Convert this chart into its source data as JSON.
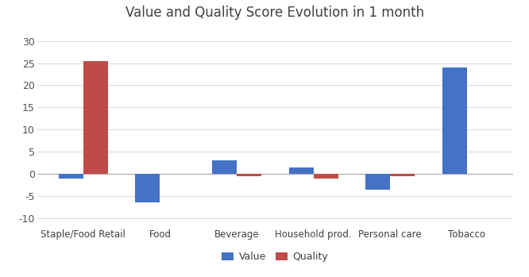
{
  "title": "Value and Quality Score Evolution in 1 month",
  "categories": [
    "Staple/Food Retail",
    "Food",
    "Beverage",
    "Household prod.",
    "Personal care",
    "Tobacco"
  ],
  "value": [
    -1.0,
    -6.5,
    3.0,
    1.5,
    -3.5,
    24.0
  ],
  "quality": [
    25.5,
    0.0,
    -0.5,
    -1.0,
    -0.5,
    0.0
  ],
  "value_color": "#4472C4",
  "quality_color": "#BE4B48",
  "ylim": [
    -12,
    33
  ],
  "yticks": [
    -10,
    -5,
    0,
    5,
    10,
    15,
    20,
    25,
    30
  ],
  "bar_width": 0.32,
  "legend_labels": [
    "Value",
    "Quality"
  ],
  "background_color": "#FFFFFF",
  "title_color": "#404040",
  "title_fontsize": 12
}
